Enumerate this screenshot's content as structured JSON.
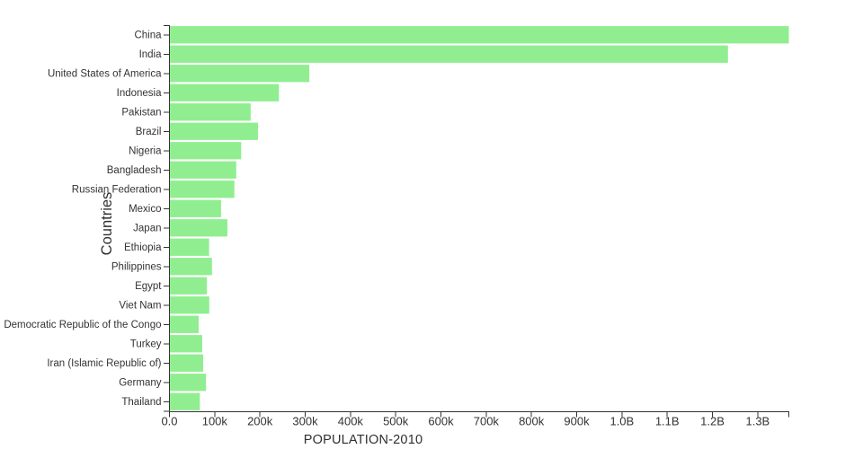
{
  "chart_data": {
    "type": "bar",
    "orientation": "horizontal",
    "title": "",
    "xlabel": "POPULATION-2010",
    "ylabel": "Countries",
    "categories": [
      "China",
      "India",
      "United States of America",
      "Indonesia",
      "Pakistan",
      "Brazil",
      "Nigeria",
      "Bangladesh",
      "Russian Federation",
      "Mexico",
      "Japan",
      "Ethiopia",
      "Philippines",
      "Egypt",
      "Viet Nam",
      "Democratic Republic of the Congo",
      "Turkey",
      "Iran (Islamic Republic of)",
      "Germany",
      "Thailand"
    ],
    "values": [
      1368811,
      1234281,
      309011,
      241834,
      179425,
      195714,
      158503,
      147575,
      143479,
      114093,
      128070,
      87640,
      93967,
      82761,
      87968,
      64564,
      72326,
      74573,
      80827,
      67195
    ],
    "xlim": [
      0,
      1368811
    ],
    "x_ticks": {
      "values": [
        0,
        100000,
        200000,
        300000,
        400000,
        500000,
        600000,
        700000,
        800000,
        900000,
        1000000,
        1100000,
        1200000,
        1300000
      ],
      "labels": [
        "0.0",
        "100k",
        "200k",
        "300k",
        "400k",
        "500k",
        "600k",
        "700k",
        "800k",
        "900k",
        "1.0B",
        "1.1B",
        "1.2B",
        "1.3B"
      ]
    },
    "grid": false,
    "legend": false,
    "bar_color": "#90ee90",
    "axis_color": "#333333",
    "text_color": "#333333"
  }
}
